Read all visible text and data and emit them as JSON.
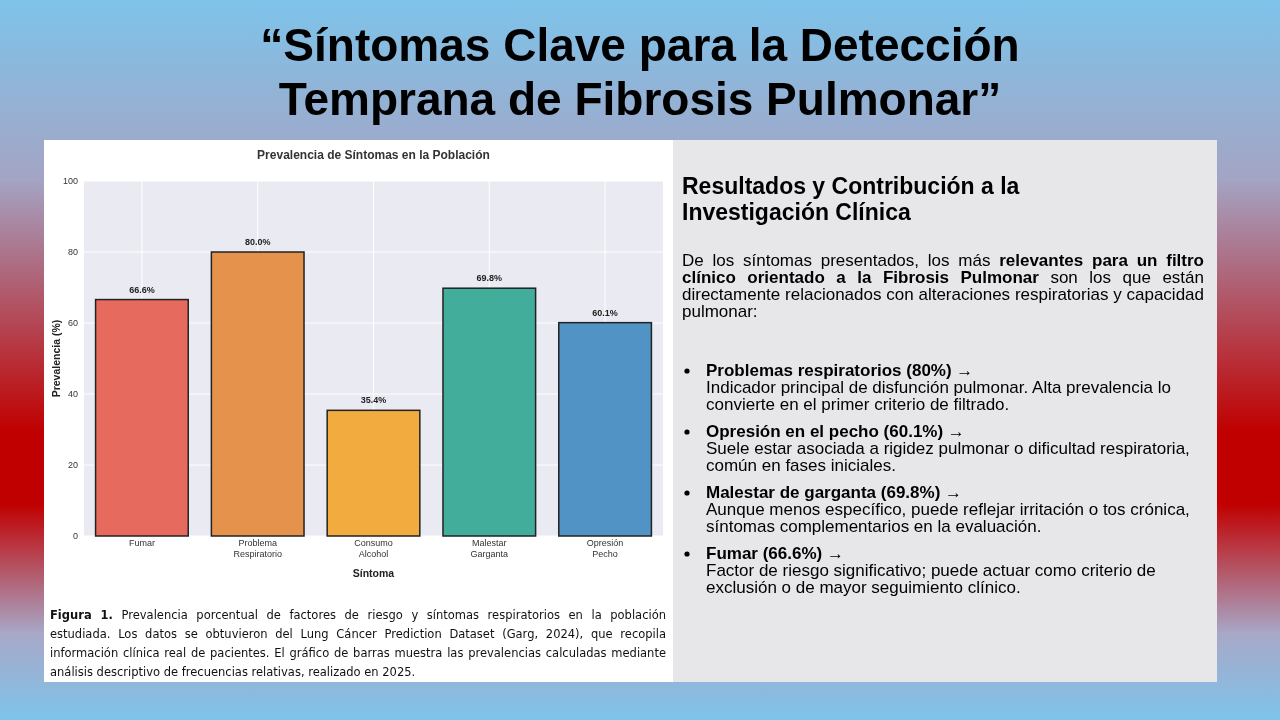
{
  "chart_data": {
    "type": "bar",
    "title": "“Síntomas Clave para la Detección Temprana de Fibrosis Pulmonar”",
    "subtitle": "Prevalencia de Síntomas en la Población",
    "xlabel": "Síntoma",
    "ylabel": "Prevalencia (%)",
    "categories": [
      "Fumar",
      "Problema Respiratorio",
      "Consumo Alcohol",
      "Malestar Garganta",
      "Opresión Pecho"
    ],
    "values": [
      66.6,
      80.0,
      35.4,
      69.8,
      60.1
    ],
    "colors": [
      "#e76a5f",
      "#e5924d",
      "#f1ab3f",
      "#42ad9a",
      "#5093c4"
    ],
    "value_labels": [
      "66.6%",
      "80.0%",
      "35.4%",
      "69.8%",
      "60.1%"
    ],
    "ylim": [
      0,
      100
    ],
    "yticks": [
      0,
      20,
      40,
      60,
      80,
      100
    ],
    "grid": true,
    "annotations": [
      "Resultados y Contribución a la Investigación Clínica",
      "De los síntomas presentados, los más ",
      "relevantes para un filtro clínico orientado a la Fibrosis Pulmonar",
      " son los que están directamente relacionados con alteraciones respiratorias y capacidad pulmonar:",
      "Problemas respiratorios (80%) →",
      "Indicador principal de disfunción pulmonar. Alta prevalencia lo convierte en el primer criterio de filtrado.",
      "Opresión en el pecho (60.1%) →",
      "Suele estar asociada a rigidez pulmonar o dificultad respiratoria, común en fases iniciales.",
      "Malestar de garganta (69.8%) →",
      "Aunque menos específico, puede reflejar irritación o tos crónica, síntomas complementarios en la evaluación.",
      "Fumar (66.6%) →",
      "Factor de riesgo significativo; puede actuar como criterio de exclusión o de mayor seguimiento clínico.",
      "Figura 1.",
      " Prevalencia porcentual de factores de riesgo y síntomas respiratorios en la población estudiada. Los datos se obtuvieron del Lung Cáncer Prediction Dataset (Garg, 2024), que recopila información clínica real de pacientes. El gráfico de barras muestra las prevalencias calculadas mediante análisis descriptivo de frecuencias relativas, realizado en 2025."
    ]
  }
}
